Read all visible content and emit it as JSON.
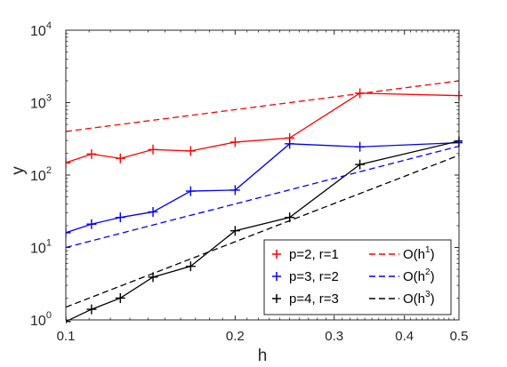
{
  "chart_data": {
    "type": "line",
    "title": "",
    "xlabel": "h",
    "ylabel": "y",
    "xscale": "log",
    "yscale": "log",
    "xlim": [
      0.1,
      0.5
    ],
    "ylim": [
      1,
      10000
    ],
    "x_ticks": [
      0.1,
      0.2,
      0.3,
      0.4,
      0.5
    ],
    "x_tick_labels": [
      "0.1",
      "0.2",
      "0.3",
      "0.4",
      "0.5"
    ],
    "y_ticks": [
      1,
      10,
      100,
      1000,
      10000
    ],
    "y_tick_labels": [
      {
        "base": "10",
        "exp": "0"
      },
      {
        "base": "10",
        "exp": "1"
      },
      {
        "base": "10",
        "exp": "2"
      },
      {
        "base": "10",
        "exp": "3"
      },
      {
        "base": "10",
        "exp": "4"
      }
    ],
    "grid": false,
    "legend_position": "bottom-right",
    "series": [
      {
        "name": "p=2, r=1",
        "color": "#ff0000",
        "style": "solid",
        "marker": "+",
        "x": [
          0.1,
          0.1111,
          0.125,
          0.1429,
          0.1667,
          0.2,
          0.25,
          0.3333,
          0.5
        ],
        "y": [
          148,
          195,
          170,
          225,
          215,
          285,
          325,
          1350,
          1250
        ]
      },
      {
        "name": "p=3, r=2",
        "color": "#0000ff",
        "style": "solid",
        "marker": "+",
        "x": [
          0.1,
          0.1111,
          0.125,
          0.1429,
          0.1667,
          0.2,
          0.25,
          0.3333,
          0.5
        ],
        "y": [
          16,
          21,
          26,
          31,
          60,
          62,
          270,
          245,
          280
        ]
      },
      {
        "name": "p=4, r=3",
        "color": "#000000",
        "style": "solid",
        "marker": "+",
        "x": [
          0.1,
          0.1111,
          0.125,
          0.1429,
          0.1667,
          0.2,
          0.25,
          0.3333,
          0.5
        ],
        "y": [
          0.95,
          1.4,
          2.0,
          3.9,
          5.5,
          17,
          26,
          140,
          295
        ]
      },
      {
        "name": "",
        "legend_base": "O(h",
        "legend_exp": "1",
        "legend_close": ")",
        "color": "#ff0000",
        "style": "dashed",
        "marker": "",
        "x": [
          0.1,
          0.5
        ],
        "y": [
          400,
          2000
        ]
      },
      {
        "name": "",
        "legend_base": "O(h",
        "legend_exp": "2",
        "legend_close": ")",
        "color": "#0000ff",
        "style": "dashed",
        "marker": "",
        "x": [
          0.1,
          0.5
        ],
        "y": [
          10,
          250
        ]
      },
      {
        "name": "",
        "legend_base": "O(h",
        "legend_exp": "3",
        "legend_close": ")",
        "color": "#000000",
        "style": "dashed",
        "marker": "",
        "x": [
          0.1,
          0.5
        ],
        "y": [
          1.5,
          187.5
        ]
      }
    ]
  }
}
